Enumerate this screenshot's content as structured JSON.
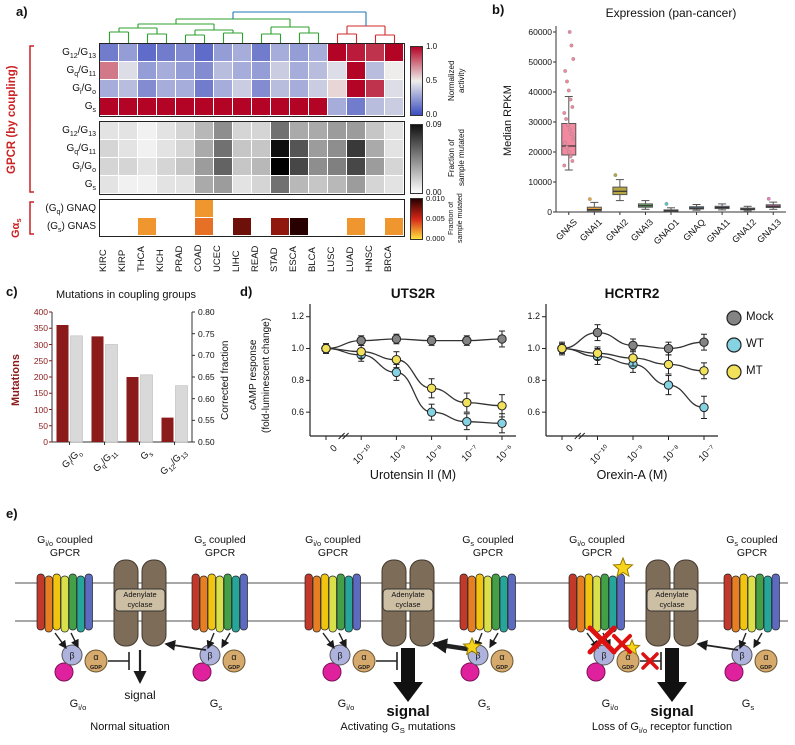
{
  "panel_a": {
    "label": "a)",
    "coupling_label": "GPCR (by coupling)",
    "gas_label": [
      "G",
      "α",
      {
        "s": "s"
      }
    ],
    "columns": [
      "KIRC",
      "KIRP",
      "THCA",
      "KICH",
      "PRAD",
      "COAD",
      "UCEC",
      "LIHC",
      "READ",
      "STAD",
      "ESCA",
      "BLCA",
      "LUSC",
      "LUAD",
      "HNSC",
      "BRCA"
    ],
    "dendrogram_colors": {
      "left": "#2ca02c",
      "right": "#d62728",
      "root": "#1f77b4"
    },
    "activity": {
      "row_labels": [
        [
          "G",
          {
            "s": "12"
          },
          "/G",
          {
            "s": "13"
          }
        ],
        [
          "G",
          {
            "s": "q"
          },
          "/G",
          {
            "s": "11"
          }
        ],
        [
          "G",
          {
            "s": "i"
          },
          "/G",
          {
            "s": "o"
          }
        ],
        [
          "G",
          {
            "s": "s"
          }
        ]
      ],
      "values": [
        [
          0.15,
          0.25,
          0.1,
          0.15,
          0.2,
          0.1,
          0.25,
          0.3,
          0.15,
          0.3,
          0.25,
          0.3,
          1.0,
          0.95,
          0.9,
          1.0
        ],
        [
          0.75,
          0.45,
          0.25,
          0.3,
          0.25,
          0.2,
          0.35,
          0.3,
          0.25,
          0.4,
          0.3,
          0.35,
          0.45,
          1.0,
          0.35,
          0.5
        ],
        [
          0.3,
          0.35,
          0.2,
          0.3,
          0.3,
          0.15,
          0.3,
          0.4,
          0.2,
          0.35,
          0.3,
          0.4,
          0.55,
          1.0,
          0.9,
          0.45
        ],
        [
          1.0,
          1.0,
          1.0,
          1.0,
          1.0,
          1.0,
          1.0,
          1.0,
          1.0,
          1.0,
          1.0,
          1.0,
          0.3,
          0.15,
          0.35,
          0.4
        ]
      ],
      "colorbar_title": "Normalized\nactivity",
      "colorbar_ticks": [
        "1.0",
        "0.5",
        "0.0"
      ]
    },
    "mutated": {
      "row_labels": [
        [
          "G",
          {
            "s": "12"
          },
          "/G",
          {
            "s": "13"
          }
        ],
        [
          "G",
          {
            "s": "q"
          },
          "/G",
          {
            "s": "11"
          }
        ],
        [
          "G",
          {
            "s": "i"
          },
          "/G",
          {
            "s": "o"
          }
        ],
        [
          "G",
          {
            "s": "s"
          }
        ]
      ],
      "values": [
        [
          0.01,
          0.01,
          0.005,
          0.01,
          0.015,
          0.025,
          0.04,
          0.015,
          0.015,
          0.05,
          0.03,
          0.03,
          0.035,
          0.035,
          0.02,
          0.01
        ],
        [
          0.015,
          0.01,
          0.005,
          0.01,
          0.015,
          0.03,
          0.05,
          0.02,
          0.02,
          0.085,
          0.06,
          0.035,
          0.04,
          0.07,
          0.03,
          0.01
        ],
        [
          0.015,
          0.015,
          0.01,
          0.015,
          0.02,
          0.035,
          0.055,
          0.02,
          0.025,
          0.09,
          0.065,
          0.04,
          0.045,
          0.065,
          0.035,
          0.015
        ],
        [
          0.01,
          0.005,
          0.005,
          0.01,
          0.01,
          0.03,
          0.035,
          0.01,
          0.015,
          0.05,
          0.025,
          0.02,
          0.025,
          0.035,
          0.015,
          0.01
        ]
      ],
      "colorbar_title": "Fraction of\nsample mutated",
      "colorbar_ticks": [
        "0.09",
        "0.00"
      ]
    },
    "genes": {
      "row_labels": [
        [
          "(G",
          {
            "s": "q"
          },
          ") GNAQ"
        ],
        [
          "(G",
          {
            "s": "s"
          },
          ") GNAS"
        ]
      ],
      "values": [
        [
          null,
          null,
          null,
          null,
          null,
          0.002,
          null,
          null,
          null,
          null,
          null,
          null,
          null,
          null,
          null,
          null
        ],
        [
          null,
          null,
          0.002,
          null,
          null,
          0.003,
          null,
          0.008,
          null,
          0.007,
          0.01,
          null,
          null,
          0.002,
          null,
          0.002
        ]
      ],
      "colorbar_title": "Fraction of\nsample mutated",
      "colorbar_ticks": [
        "0.010",
        "0.005",
        "0.000"
      ]
    }
  },
  "panel_b": {
    "label": "b)",
    "title": "Expression (pan-cancer)",
    "ylabel": "Median RPKM",
    "ymax": 62000,
    "yticks": [
      0,
      10000,
      20000,
      30000,
      40000,
      50000,
      60000
    ],
    "boxes": [
      {
        "name": "GNAS",
        "color": "#f2899f",
        "lo": 14000,
        "q1": 19000,
        "med": 22000,
        "q3": 29500,
        "hi": 38500,
        "pts": [
          15500,
          17000,
          18500,
          20000,
          21500,
          23000,
          24500,
          26000,
          27500,
          29000,
          31000,
          33000,
          35000,
          37500,
          40500,
          43500,
          47000,
          51000,
          55500,
          60000
        ]
      },
      {
        "name": "GNAI1",
        "color": "#e8a33d",
        "lo": 100,
        "q1": 400,
        "med": 800,
        "q3": 1600,
        "hi": 3200,
        "pts": [
          4300
        ]
      },
      {
        "name": "GNAI2",
        "color": "#b5a642",
        "lo": 3800,
        "q1": 5800,
        "med": 6900,
        "q3": 8300,
        "hi": 10800,
        "pts": [
          12300
        ]
      },
      {
        "name": "GNAI3",
        "color": "#6abf69",
        "lo": 900,
        "q1": 1600,
        "med": 2100,
        "q3": 2700,
        "hi": 3800,
        "pts": []
      },
      {
        "name": "GNAO1",
        "color": "#4dc8c8",
        "lo": 50,
        "q1": 200,
        "med": 400,
        "q3": 700,
        "hi": 1400,
        "pts": [
          2700
        ]
      },
      {
        "name": "GNAQ",
        "color": "#64b5e3",
        "lo": 600,
        "q1": 1000,
        "med": 1300,
        "q3": 1750,
        "hi": 2500,
        "pts": []
      },
      {
        "name": "GNA11",
        "color": "#7f9fe0",
        "lo": 700,
        "q1": 1150,
        "med": 1500,
        "q3": 1900,
        "hi": 2700,
        "pts": []
      },
      {
        "name": "GNA12",
        "color": "#b07fd6",
        "lo": 400,
        "q1": 750,
        "med": 950,
        "q3": 1300,
        "hi": 1900,
        "pts": []
      },
      {
        "name": "GNA13",
        "color": "#e87fc0",
        "lo": 900,
        "q1": 1500,
        "med": 1900,
        "q3": 2400,
        "hi": 3300,
        "pts": [
          4400
        ]
      }
    ]
  },
  "panel_c": {
    "label": "c)",
    "title": "Mutations in coupling groups",
    "ylabel_left": "Mutations",
    "ylabel_right": "Corrected fraction",
    "yticks_left": [
      0,
      50,
      100,
      150,
      200,
      250,
      300,
      350,
      400
    ],
    "yticks_right": [
      "0.50",
      "0.55",
      "0.60",
      "0.65",
      "0.70",
      "0.75",
      "0.80"
    ],
    "categories": [
      [
        "G",
        {
          "s": "i"
        },
        "/G",
        {
          "s": "o"
        }
      ],
      [
        "G",
        {
          "s": "q"
        },
        "/G",
        {
          "s": "11"
        }
      ],
      [
        "G",
        {
          "s": "s"
        }
      ],
      [
        "G",
        {
          "s": "12"
        },
        "/G",
        {
          "s": "13"
        }
      ]
    ],
    "mutations": [
      360,
      325,
      200,
      75
    ],
    "corrected": [
      0.745,
      0.725,
      0.655,
      0.63
    ],
    "bar_color": "#8b1a1a",
    "bar2_color": "#d9d9d9"
  },
  "panel_d": {
    "label": "d)",
    "ylabel": "cAMP response\n(fold-luminescent change)",
    "ylim": [
      0.45,
      1.28
    ],
    "yticks": [
      1.2,
      1.0,
      0.8,
      0.6
    ],
    "legend": [
      {
        "label": "Mock",
        "color": "#848484"
      },
      {
        "label": "WT",
        "color": "#85d2e3"
      },
      {
        "label": "MT",
        "color": "#f2e15a"
      }
    ],
    "plots": [
      {
        "title": "UTS2R",
        "xlabel": "Urotensin II (M)",
        "xticks": [
          "0",
          "10⁻¹⁰",
          "10⁻⁹",
          "10⁻⁸",
          "10⁻⁷",
          "10⁻⁶"
        ],
        "series": [
          {
            "name": "Mock",
            "y": [
              1.0,
              1.05,
              1.06,
              1.05,
              1.05,
              1.06
            ],
            "err": [
              0.03,
              0.03,
              0.03,
              0.03,
              0.03,
              0.05
            ]
          },
          {
            "name": "WT",
            "y": [
              1.0,
              0.96,
              0.85,
              0.6,
              0.54,
              0.53
            ],
            "err": [
              0.03,
              0.04,
              0.05,
              0.05,
              0.05,
              0.06
            ]
          },
          {
            "name": "MT",
            "y": [
              1.0,
              0.98,
              0.93,
              0.75,
              0.66,
              0.64
            ],
            "err": [
              0.03,
              0.04,
              0.05,
              0.06,
              0.06,
              0.07
            ]
          }
        ]
      },
      {
        "title": "HCRTR2",
        "xlabel": "Orexin-A (M)",
        "xticks": [
          "0",
          "10⁻¹⁰",
          "10⁻⁹",
          "10⁻⁸",
          "10⁻⁷"
        ],
        "series": [
          {
            "name": "Mock",
            "y": [
              1.0,
              1.1,
              1.02,
              1.0,
              1.04
            ],
            "err": [
              0.04,
              0.05,
              0.04,
              0.04,
              0.05
            ]
          },
          {
            "name": "WT",
            "y": [
              1.0,
              0.95,
              0.9,
              0.77,
              0.63
            ],
            "err": [
              0.03,
              0.05,
              0.05,
              0.06,
              0.07
            ]
          },
          {
            "name": "MT",
            "y": [
              1.0,
              0.97,
              0.94,
              0.9,
              0.86
            ],
            "err": [
              0.03,
              0.04,
              0.05,
              0.06,
              0.05
            ]
          }
        ]
      }
    ]
  },
  "panel_e": {
    "label": "e)",
    "receptor_left_label": [
      [
        "G",
        {
          "s": "i/o"
        },
        " coupled"
      ],
      "GPCR"
    ],
    "receptor_right_label": [
      [
        "G",
        {
          "s": "s"
        },
        " coupled"
      ],
      "GPCR"
    ],
    "ac_label": "Adenylate\ncyclase",
    "beta": "β",
    "alpha": "α",
    "gdp": "GDP",
    "signal": "signal",
    "gio": [
      "G",
      {
        "s": "i/o"
      }
    ],
    "gs": [
      "G",
      {
        "s": "s"
      }
    ],
    "captions": [
      [
        "Normal situation"
      ],
      [
        "Activating G",
        {
          "s": "S"
        },
        " mutations"
      ],
      [
        "Loss of G",
        {
          "s": "i/o"
        },
        " receptor function"
      ]
    ],
    "diagrams": [
      {
        "variant": "normal"
      },
      {
        "variant": "gs_mutation"
      },
      {
        "variant": "gio_loss"
      }
    ]
  },
  "colors": {
    "membrane": "#8a8a8a",
    "helix_colors": [
      "#c0392b",
      "#e67e22",
      "#f1c40f",
      "#d9e04a",
      "#43a047",
      "#26a69a",
      "#5c6bc0"
    ],
    "ac_body": "#7d6c57",
    "ac_box": "#cdbfa4",
    "alpha": "#d6a96d",
    "beta": "#aeb3dd",
    "gamma": "#e0219e",
    "star": "#f6d41c",
    "cross": "#dd1111",
    "accent_red": "#cc2222"
  }
}
